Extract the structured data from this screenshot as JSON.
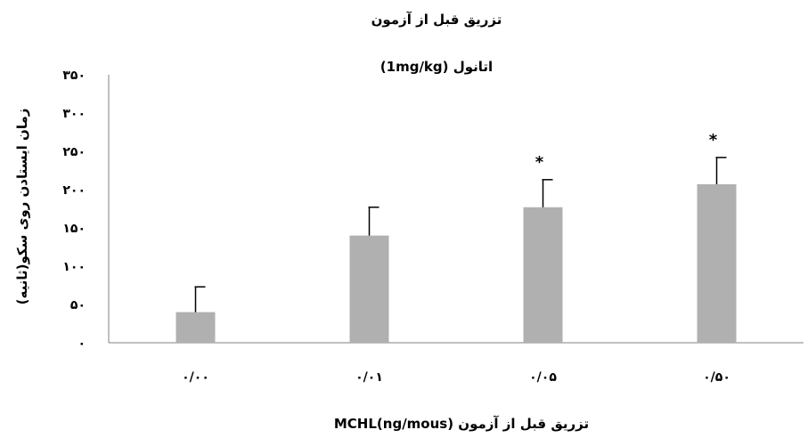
{
  "chart_data": {
    "type": "bar",
    "title": "تزریق قبل از آزمون",
    "subtitle": "(1mg/kg) اتانول",
    "xlabel": "MCHL(ng/mous) تزریق قبل از آزمون",
    "ylabel": "زمان ایستادن روی سکو(ثانیه)",
    "categories": [
      "۰/۰۰",
      "۰/۰۱",
      "۰/۰۵",
      "۰/۵۰"
    ],
    "values": [
      40,
      140,
      177,
      207
    ],
    "errors": [
      33,
      37,
      36,
      35
    ],
    "annotations": [
      "",
      "",
      "*",
      "*"
    ],
    "ylim": [
      0,
      350
    ],
    "yticks": [
      0,
      50,
      100,
      150,
      200,
      250,
      300,
      350
    ],
    "ytick_labels": [
      "۰",
      "۵۰",
      "۱۰۰",
      "۱۵۰",
      "۲۰۰",
      "۲۵۰",
      "۳۰۰",
      "۳۵۰"
    ],
    "bar_color": "#b0b0b0",
    "grid": false
  }
}
